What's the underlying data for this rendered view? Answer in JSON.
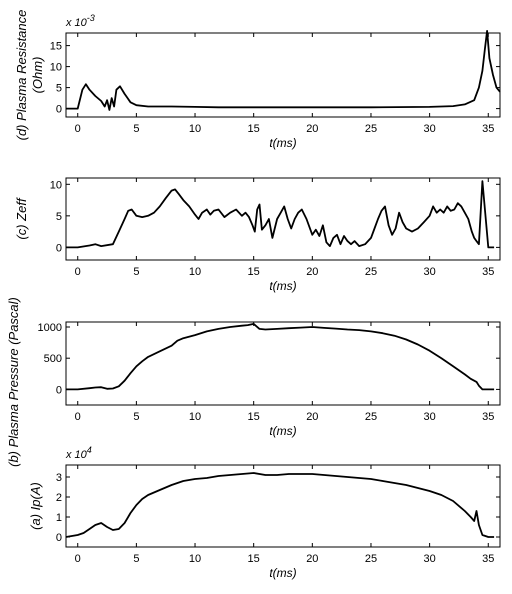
{
  "chart_data": [
    {
      "id": "resistance",
      "type": "line",
      "title": "",
      "ylabel": "(d) Plasma Resistance",
      "ylabel2": "(Ohm)",
      "xlabel": "t(ms)",
      "multiplier": "x 10",
      "multiplier_exp": "-3",
      "xlim": [
        -1,
        36
      ],
      "ylim": [
        -2,
        18
      ],
      "xticks": [
        0,
        5,
        10,
        15,
        20,
        25,
        30,
        35
      ],
      "yticks": [
        0,
        5,
        10,
        15
      ],
      "x": [
        -1,
        0,
        0.4,
        0.7,
        1.0,
        1.5,
        2.0,
        2.3,
        2.5,
        2.7,
        2.9,
        3.1,
        3.3,
        3.6,
        4.0,
        4.5,
        5,
        6,
        8,
        10,
        12,
        15,
        20,
        25,
        30,
        32,
        33,
        33.8,
        34.2,
        34.5,
        34.7,
        34.9,
        35.1,
        35.4,
        35.7,
        36
      ],
      "y": [
        0,
        0,
        4.5,
        5.8,
        4.5,
        3.0,
        1.8,
        0.5,
        2.0,
        -0.3,
        2.5,
        0.5,
        4.5,
        5.3,
        3.5,
        1.5,
        0.8,
        0.5,
        0.5,
        0.4,
        0.3,
        0.3,
        0.3,
        0.3,
        0.4,
        0.6,
        1.0,
        2.0,
        5.0,
        9.0,
        14.0,
        18.5,
        12.0,
        8.0,
        5.0,
        4.0
      ]
    },
    {
      "id": "zeff",
      "type": "line",
      "title": "",
      "ylabel": "(c) Zeff",
      "xlabel": "t(ms)",
      "xlim": [
        -1,
        36
      ],
      "ylim": [
        -2,
        11
      ],
      "xticks": [
        0,
        5,
        10,
        15,
        20,
        25,
        30,
        35
      ],
      "yticks": [
        0,
        5,
        10
      ],
      "x": [
        -1,
        0,
        1,
        1.5,
        2,
        3,
        3.5,
        4,
        4.3,
        4.6,
        5,
        5.5,
        6,
        6.5,
        7,
        7.5,
        8,
        8.3,
        8.6,
        9,
        9.5,
        10,
        10.3,
        10.6,
        11,
        11.3,
        11.6,
        12,
        12.5,
        13,
        13.5,
        14,
        14.3,
        14.6,
        14.9,
        15.1,
        15.3,
        15.5,
        15.7,
        16,
        16.3,
        16.6,
        17,
        17.3,
        17.6,
        17.9,
        18.2,
        18.5,
        18.8,
        19.1,
        19.5,
        20,
        20.3,
        20.6,
        20.9,
        21.2,
        21.5,
        21.8,
        22.1,
        22.4,
        22.7,
        23,
        23.3,
        23.6,
        24,
        24.5,
        25,
        25.3,
        25.6,
        25.9,
        26.2,
        26.5,
        26.8,
        27.1,
        27.4,
        27.7,
        28,
        28.5,
        29,
        29.5,
        30,
        30.3,
        30.6,
        30.9,
        31.2,
        31.5,
        31.8,
        32.1,
        32.4,
        32.7,
        33,
        33.3,
        33.6,
        33.8,
        34.0,
        34.2,
        34.5,
        35,
        35.5
      ],
      "y": [
        0,
        0,
        0.3,
        0.5,
        0.2,
        0.5,
        2.5,
        4.5,
        5.8,
        6.0,
        5.0,
        4.8,
        5.0,
        5.5,
        6.5,
        7.8,
        9.0,
        9.2,
        8.5,
        7.5,
        6.5,
        5.2,
        4.5,
        5.5,
        6.0,
        5.2,
        5.8,
        6.0,
        4.8,
        5.5,
        6.0,
        5.0,
        5.5,
        4.8,
        3.5,
        2.5,
        6.0,
        6.8,
        2.8,
        3.5,
        4.5,
        1.5,
        4.5,
        5.5,
        6.5,
        4.5,
        3.0,
        4.5,
        5.5,
        6.0,
        4.5,
        2.0,
        2.8,
        1.8,
        3.5,
        0.8,
        0.2,
        1.5,
        2.0,
        0.5,
        1.8,
        1.0,
        0.5,
        1.0,
        0.2,
        0.5,
        1.5,
        3.0,
        4.5,
        5.8,
        6.5,
        3.5,
        2.0,
        3.0,
        5.5,
        4.0,
        3.0,
        2.5,
        3.0,
        4.0,
        5.0,
        6.5,
        5.5,
        6.0,
        5.5,
        6.5,
        5.8,
        6.0,
        7.0,
        6.5,
        5.5,
        4.5,
        2.5,
        1.5,
        1.0,
        0.5,
        10.5,
        0,
        0
      ]
    },
    {
      "id": "pressure",
      "type": "line",
      "title": "",
      "ylabel": "(b) Plasma Pressure (Pascal)",
      "xlabel": "t(ms)",
      "xlim": [
        -1,
        36
      ],
      "ylim": [
        -250,
        1080
      ],
      "xticks": [
        0,
        5,
        10,
        15,
        20,
        25,
        30,
        35
      ],
      "yticks": [
        0,
        500,
        1000
      ],
      "x": [
        -1,
        0,
        1,
        1.5,
        2,
        2.5,
        3,
        3.5,
        4,
        4.5,
        5,
        5.5,
        6,
        7,
        8,
        8.5,
        9,
        10,
        11,
        12,
        13,
        14,
        14.5,
        15,
        15.5,
        16,
        17,
        18,
        19,
        20,
        21,
        22,
        23,
        24,
        25,
        26,
        27,
        28,
        29,
        30,
        31,
        32,
        33,
        33.5,
        33.8,
        34.0,
        34.2,
        34.5,
        35,
        35.5
      ],
      "y": [
        0,
        0,
        20,
        30,
        35,
        10,
        15,
        50,
        140,
        260,
        370,
        450,
        520,
        610,
        700,
        780,
        820,
        870,
        930,
        970,
        1000,
        1020,
        1030,
        1050,
        970,
        960,
        970,
        980,
        990,
        1000,
        985,
        975,
        960,
        950,
        930,
        900,
        860,
        800,
        720,
        620,
        500,
        370,
        240,
        170,
        140,
        120,
        60,
        0,
        0,
        0
      ]
    },
    {
      "id": "current",
      "type": "line",
      "title": "",
      "ylabel": "(a) Ip(A)",
      "xlabel": "t(ms)",
      "multiplier": "x 10",
      "multiplier_exp": "4",
      "xlim": [
        -1,
        36
      ],
      "ylim": [
        -0.5,
        3.6
      ],
      "xticks": [
        0,
        5,
        10,
        15,
        20,
        25,
        30,
        35
      ],
      "yticks": [
        0,
        1,
        2,
        3
      ],
      "x": [
        -1,
        0,
        0.5,
        1,
        1.5,
        2,
        2.5,
        3,
        3.5,
        4,
        4.5,
        5,
        5.5,
        6,
        7,
        8,
        9,
        10,
        11,
        12,
        13,
        14,
        15,
        16,
        17,
        18,
        19,
        20,
        21,
        22,
        23,
        24,
        25,
        26,
        27,
        28,
        29,
        30,
        31,
        32,
        33,
        33.5,
        33.8,
        34.0,
        34.2,
        34.5,
        35,
        35.5
      ],
      "y": [
        0,
        0.1,
        0.2,
        0.4,
        0.6,
        0.7,
        0.5,
        0.35,
        0.4,
        0.7,
        1.2,
        1.6,
        1.9,
        2.1,
        2.35,
        2.6,
        2.8,
        2.9,
        2.95,
        3.05,
        3.1,
        3.15,
        3.2,
        3.1,
        3.1,
        3.15,
        3.15,
        3.15,
        3.1,
        3.05,
        3.0,
        2.95,
        2.9,
        2.8,
        2.7,
        2.6,
        2.45,
        2.3,
        2.1,
        1.8,
        1.3,
        1.0,
        0.8,
        1.3,
        0.6,
        0.1,
        0.0,
        0.0
      ]
    }
  ]
}
